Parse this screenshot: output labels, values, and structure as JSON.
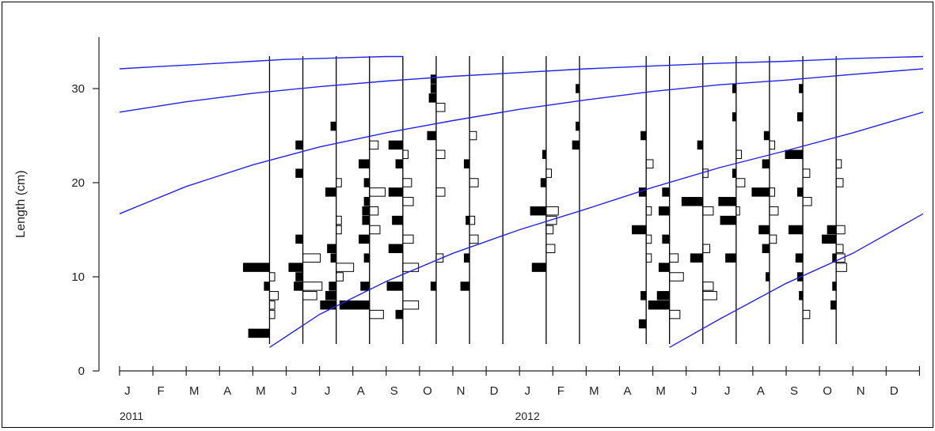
{
  "chart_data": {
    "type": "length-frequency",
    "ylabel": "Length (cm)",
    "ylim": [
      0,
      36
    ],
    "yticks": [
      0,
      10,
      20,
      30
    ],
    "x_range_months": [
      0,
      24
    ],
    "month_labels": [
      "J",
      "F",
      "M",
      "A",
      "M",
      "J",
      "J",
      "A",
      "S",
      "O",
      "N",
      "D",
      "J",
      "F",
      "M",
      "A",
      "M",
      "J",
      "J",
      "A",
      "S",
      "O",
      "N",
      "D"
    ],
    "years": [
      {
        "label": "2011",
        "month": 0
      },
      {
        "label": "2012",
        "month": 12
      }
    ],
    "colors": {
      "growth_curve": "#2222ee",
      "bar_fill_dark": "#000000",
      "bar_fill_light": "#ffffff"
    },
    "sample_dates_months": [
      4.5,
      5.5,
      6.5,
      7.5,
      8.5,
      9.5,
      10.5,
      11.5,
      12.8,
      13.8,
      15.8,
      16.5,
      17.5,
      18.5,
      19.5,
      20.5,
      21.5
    ],
    "growth_curves": [
      {
        "x": [
          0,
          1,
          2,
          3,
          4,
          5,
          6,
          7,
          8,
          8.5
        ],
        "y": [
          32.1,
          32.3,
          32.5,
          32.7,
          32.9,
          33.1,
          33.2,
          33.3,
          33.4,
          33.4
        ]
      },
      {
        "x": [
          0,
          2,
          4,
          6,
          8,
          10,
          12,
          14,
          16,
          18,
          20,
          22,
          24.4
        ],
        "y": [
          27.5,
          28.6,
          29.5,
          30.2,
          30.8,
          31.3,
          31.7,
          32.1,
          32.4,
          32.7,
          32.9,
          33.2,
          33.4
        ]
      },
      {
        "x": [
          0,
          2,
          4,
          6,
          8,
          10,
          12,
          14,
          16,
          18,
          20,
          22,
          24.4
        ],
        "y": [
          16.7,
          19.6,
          21.9,
          23.8,
          25.3,
          26.6,
          27.8,
          28.8,
          29.7,
          30.4,
          30.9,
          31.5,
          32.1
        ]
      },
      {
        "x": [
          4.5,
          6,
          8,
          10,
          12,
          14,
          16,
          18,
          20,
          22,
          24.4
        ],
        "y": [
          2.5,
          6,
          9.5,
          12.5,
          15,
          17.2,
          19.5,
          21.6,
          23.4,
          25.3,
          27.5
        ]
      },
      {
        "x": [
          16.5,
          18,
          20,
          22,
          24.4
        ],
        "y": [
          2.5,
          5.5,
          9.3,
          12.5,
          16.7
        ]
      }
    ],
    "samples": [
      {
        "x": 4.5,
        "dark_left": [
          [
            4,
            1.2
          ],
          [
            9,
            0.3
          ],
          [
            11,
            1.5
          ]
        ],
        "light_right": [
          [
            6,
            0.3
          ],
          [
            7,
            0.3
          ],
          [
            8,
            0.5
          ],
          [
            10,
            0.3
          ]
        ]
      },
      {
        "x": 5.5,
        "dark_left": [
          [
            9,
            0.5
          ],
          [
            10,
            0.4
          ],
          [
            11,
            0.8
          ],
          [
            14,
            0.4
          ],
          [
            21,
            0.4
          ],
          [
            24,
            0.4
          ]
        ],
        "light_right": [
          [
            8,
            0.8
          ],
          [
            9,
            1.1
          ],
          [
            12,
            1.0
          ]
        ]
      },
      {
        "x": 6.5,
        "dark_left": [
          [
            7,
            0.9
          ],
          [
            8,
            0.6
          ],
          [
            9,
            0.4
          ],
          [
            12,
            0.3
          ],
          [
            13,
            0.5
          ],
          [
            19,
            0.6
          ],
          [
            26,
            0.3
          ]
        ],
        "light_right": [
          [
            10,
            0.4
          ],
          [
            11,
            1.0
          ],
          [
            15,
            0.3
          ],
          [
            16,
            0.3
          ],
          [
            20,
            0.3
          ]
        ]
      },
      {
        "x": 7.5,
        "dark_left": [
          [
            7,
            1.7
          ],
          [
            9,
            0.5
          ],
          [
            12,
            0.3
          ],
          [
            14,
            0.6
          ],
          [
            16,
            0.4
          ],
          [
            17,
            0.4
          ],
          [
            18,
            0.3
          ],
          [
            20,
            0.3
          ],
          [
            22,
            0.6
          ]
        ],
        "light_right": [
          [
            6,
            0.8
          ],
          [
            15,
            0.6
          ],
          [
            17,
            0.5
          ],
          [
            19,
            0.9
          ],
          [
            24,
            0.5
          ]
        ]
      },
      {
        "x": 8.5,
        "dark_left": [
          [
            6,
            0.4
          ],
          [
            9,
            0.9
          ],
          [
            13,
            0.8
          ],
          [
            16,
            0.6
          ],
          [
            19,
            0.8
          ],
          [
            22,
            0.4
          ],
          [
            24,
            0.8
          ]
        ],
        "light_right": [
          [
            7,
            0.9
          ],
          [
            11,
            0.9
          ],
          [
            14,
            0.6
          ],
          [
            18,
            0.6
          ],
          [
            20,
            0.5
          ],
          [
            23,
            0.3
          ]
        ]
      },
      {
        "x": 9.5,
        "dark_left": [
          [
            9,
            0.3
          ],
          [
            25,
            0.5
          ],
          [
            29,
            0.4
          ],
          [
            30,
            0.3
          ],
          [
            31,
            0.3
          ]
        ],
        "light_right": [
          [
            12,
            0.4
          ],
          [
            19,
            0.5
          ],
          [
            23,
            0.5
          ],
          [
            28,
            0.5
          ]
        ]
      },
      {
        "x": 10.5,
        "dark_left": [
          [
            9,
            0.5
          ],
          [
            12,
            0.3
          ],
          [
            16,
            0.2
          ],
          [
            22,
            0.3
          ]
        ],
        "light_right": [
          [
            14,
            0.5
          ],
          [
            16,
            0.3
          ],
          [
            20,
            0.5
          ],
          [
            25,
            0.4
          ]
        ]
      },
      {
        "x": 12.8,
        "dark_left": [
          [
            11,
            0.8
          ],
          [
            17,
            0.9
          ],
          [
            20,
            0.3
          ],
          [
            23,
            0.2
          ]
        ],
        "light_right": [
          [
            13,
            0.5
          ],
          [
            15,
            0.4
          ],
          [
            16,
            0.6
          ],
          [
            17,
            0.7
          ],
          [
            21,
            0.3
          ]
        ]
      },
      {
        "x": 13.8,
        "dark_left": [
          [
            24,
            0.4
          ],
          [
            26,
            0.2
          ],
          [
            30,
            0.2
          ]
        ],
        "light_right": []
      },
      {
        "x": 15.8,
        "dark_left": [
          [
            5,
            0.4
          ],
          [
            8,
            0.3
          ],
          [
            15,
            0.8
          ],
          [
            19,
            0.4
          ],
          [
            25,
            0.3
          ]
        ],
        "light_right": [
          [
            12,
            0.3
          ],
          [
            14,
            0.3
          ],
          [
            17,
            0.3
          ],
          [
            22,
            0.4
          ]
        ]
      },
      {
        "x": 16.5,
        "dark_left": [
          [
            7,
            1.2
          ],
          [
            8,
            0.7
          ],
          [
            11,
            0.6
          ],
          [
            14,
            0.4
          ],
          [
            17,
            0.6
          ],
          [
            19,
            0.4
          ]
        ],
        "light_right": [
          [
            6,
            0.6
          ],
          [
            10,
            0.8
          ],
          [
            12,
            0.5
          ]
        ]
      },
      {
        "x": 17.5,
        "dark_left": [
          [
            12,
            0.7
          ],
          [
            18,
            1.2
          ],
          [
            24,
            0.3
          ]
        ],
        "light_right": [
          [
            8,
            0.8
          ],
          [
            9,
            0.6
          ],
          [
            13,
            0.4
          ],
          [
            17,
            0.6
          ],
          [
            21,
            0.3
          ]
        ]
      },
      {
        "x": 18.5,
        "dark_left": [
          [
            12,
            0.6
          ],
          [
            16,
            0.9
          ],
          [
            18,
            1.0
          ],
          [
            21,
            0.2
          ],
          [
            27,
            0.2
          ],
          [
            30,
            0.2
          ]
        ],
        "light_right": [
          [
            17,
            0.2
          ],
          [
            20,
            0.5
          ],
          [
            23,
            0.3
          ]
        ]
      },
      {
        "x": 19.5,
        "dark_left": [
          [
            10,
            0.2
          ],
          [
            13,
            0.4
          ],
          [
            15,
            0.6
          ],
          [
            19,
            1.0
          ],
          [
            22,
            0.4
          ],
          [
            25,
            0.3
          ]
        ],
        "light_right": [
          [
            14,
            0.4
          ],
          [
            17,
            0.5
          ],
          [
            19,
            0.3
          ],
          [
            24,
            0.3
          ]
        ]
      },
      {
        "x": 20.5,
        "dark_left": [
          [
            8,
            0.2
          ],
          [
            10,
            0.3
          ],
          [
            12,
            0.4
          ],
          [
            15,
            0.8
          ],
          [
            19,
            0.3
          ],
          [
            23,
            1.0
          ],
          [
            27,
            0.3
          ],
          [
            30,
            0.2
          ]
        ],
        "light_right": [
          [
            6,
            0.4
          ],
          [
            18,
            0.5
          ],
          [
            21,
            0.4
          ]
        ]
      },
      {
        "x": 21.5,
        "dark_left": [
          [
            7,
            0.3
          ],
          [
            9,
            0.2
          ],
          [
            12,
            0.2
          ],
          [
            14,
            0.8
          ],
          [
            15,
            0.5
          ]
        ],
        "light_right": [
          [
            11,
            0.6
          ],
          [
            13,
            0.4
          ],
          [
            20,
            0.4
          ],
          [
            22,
            0.3
          ]
        ]
      },
      {
        "x": 21.5,
        "dark_left": [],
        "light_right": [
          [
            12,
            0.5
          ],
          [
            15,
            0.5
          ]
        ]
      }
    ]
  }
}
